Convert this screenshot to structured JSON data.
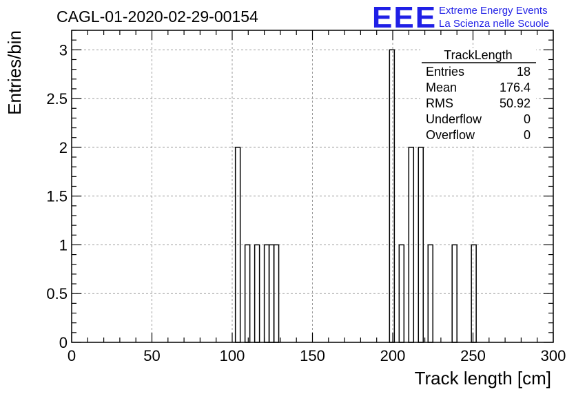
{
  "chart_data": {
    "type": "bar",
    "title": "CAGL-01-2020-02-29-00154",
    "xlabel": "Track length [cm]",
    "ylabel": "Entries/bin",
    "xlim": [
      0,
      300
    ],
    "ylim": [
      0,
      3.2
    ],
    "grid": true,
    "bin_width": 3,
    "x_ticks": [
      "0",
      "50",
      "100",
      "150",
      "200",
      "250",
      "300"
    ],
    "y_ticks": [
      "0",
      "0.5",
      "1",
      "1.5",
      "2",
      "2.5",
      "3"
    ],
    "bins": [
      {
        "x": 102,
        "value": 2
      },
      {
        "x": 108,
        "value": 1
      },
      {
        "x": 114,
        "value": 1
      },
      {
        "x": 120,
        "value": 1
      },
      {
        "x": 123,
        "value": 1
      },
      {
        "x": 126,
        "value": 1
      },
      {
        "x": 198,
        "value": 3
      },
      {
        "x": 204,
        "value": 1
      },
      {
        "x": 210,
        "value": 2
      },
      {
        "x": 216,
        "value": 2
      },
      {
        "x": 222,
        "value": 1
      },
      {
        "x": 237,
        "value": 1
      },
      {
        "x": 249,
        "value": 1
      }
    ]
  },
  "stats_box": {
    "title": "TrackLength",
    "rows": [
      {
        "label": "Entries",
        "value": "18"
      },
      {
        "label": "Mean",
        "value": "176.4"
      },
      {
        "label": "RMS",
        "value": "50.92"
      },
      {
        "label": "Underflow",
        "value": "0"
      },
      {
        "label": "Overflow",
        "value": "0"
      }
    ]
  },
  "logo": {
    "mark": "EEE",
    "line1": "Extreme Energy Events",
    "line2": "La Scienza nelle Scuole",
    "color": "#1f1fe6"
  }
}
